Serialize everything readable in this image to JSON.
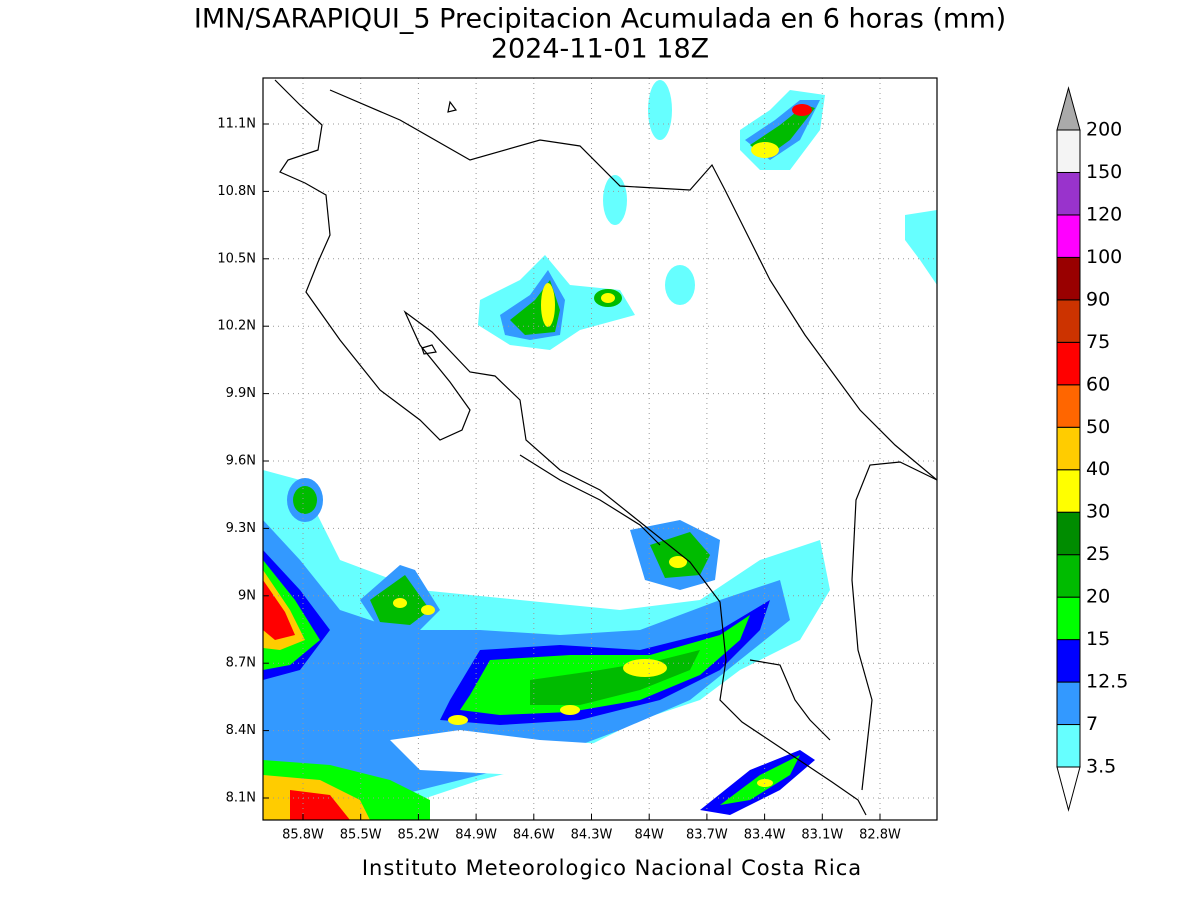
{
  "title": "IMN/SARAPIQUI_5 Precipitacion Acumulada en 6 horas (mm)",
  "subtitle": "2024-11-01 18Z",
  "footer": "Instituto Meteorologico Nacional Costa Rica",
  "axes": {
    "y_labels": [
      "11.1N",
      "10.8N",
      "10.5N",
      "10.2N",
      "9.9N",
      "9.6N",
      "9.3N",
      "9N",
      "8.7N",
      "8.4N",
      "8.1N"
    ],
    "x_labels": [
      "85.8W",
      "85.5W",
      "85.2W",
      "84.9W",
      "84.6W",
      "84.3W",
      "84W",
      "83.7W",
      "83.4W",
      "83.1W",
      "82.8W"
    ]
  },
  "colorbar": {
    "levels": [
      3.5,
      7,
      12.5,
      15,
      20,
      25,
      30,
      40,
      50,
      60,
      75,
      90,
      100,
      120,
      150,
      200
    ],
    "colors": [
      "#66ffff",
      "#3399ff",
      "#0000ff",
      "#00ff00",
      "#00bb00",
      "#008c00",
      "#ffff00",
      "#ffcc00",
      "#ff6600",
      "#ff0000",
      "#cc3300",
      "#990000",
      "#ff00ff",
      "#9933cc",
      "#f4f4f4"
    ],
    "under_color": "#ffffff",
    "over_color": "#aaaaaa"
  }
}
